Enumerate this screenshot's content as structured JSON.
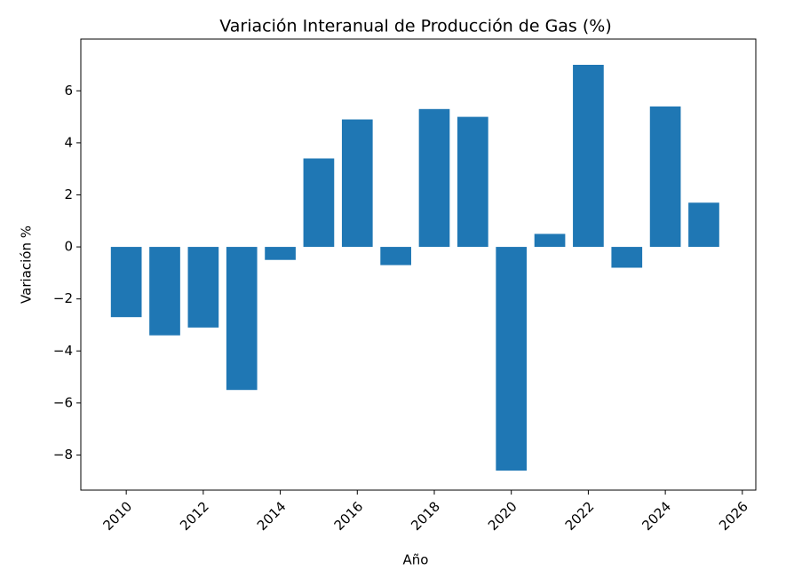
{
  "chart_data": {
    "type": "bar",
    "title": "Variación Interanual de Producción de Gas (%)",
    "x_label": "Año",
    "y_label": "Variación %",
    "x": [
      2010,
      2011,
      2012,
      2013,
      2014,
      2015,
      2016,
      2017,
      2018,
      2019,
      2020,
      2021,
      2022,
      2023,
      2024,
      2025
    ],
    "values": [
      -2.7,
      -3.4,
      -3.1,
      -5.5,
      -0.5,
      3.4,
      4.9,
      -0.7,
      5.3,
      5.0,
      -8.6,
      0.5,
      7.0,
      -0.8,
      5.4,
      1.7
    ],
    "color": "#1f77b4",
    "bar_width": 0.8,
    "xlim": [
      2008.82,
      2026.35
    ],
    "xticks": [
      2010,
      2012,
      2014,
      2016,
      2018,
      2020,
      2022,
      2024,
      2026
    ],
    "ylim": [
      -9.35,
      7.99
    ],
    "yticks": [
      {
        "value": -8,
        "label": "−8"
      },
      {
        "value": -6,
        "label": "−6"
      },
      {
        "value": -4,
        "label": "−4"
      },
      {
        "value": -2,
        "label": "−2"
      },
      0,
      2,
      4,
      6
    ],
    "grid": false
  }
}
